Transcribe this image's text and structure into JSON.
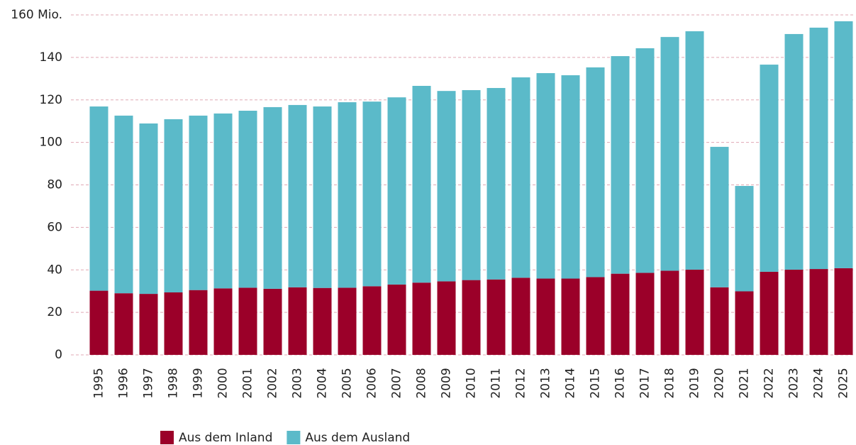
{
  "chart_data": {
    "type": "stacked_bar",
    "categories": [
      "1995",
      "1996",
      "1997",
      "1998",
      "1999",
      "2000",
      "2001",
      "2002",
      "2003",
      "2004",
      "2005",
      "2006",
      "2007",
      "2008",
      "2009",
      "2010",
      "2011",
      "2012",
      "2013",
      "2014",
      "2015",
      "2016",
      "2017",
      "2018",
      "2019",
      "2020",
      "2021",
      "2022",
      "2023",
      "2024",
      "2025"
    ],
    "series": [
      {
        "name": "Aus dem Inland",
        "color": "#9b0029",
        "values": [
          30.2,
          29,
          28.7,
          29.4,
          30.5,
          31.3,
          31.6,
          31.1,
          31.8,
          31.5,
          31.6,
          32.3,
          33.1,
          34,
          34.6,
          35.2,
          35.5,
          36.3,
          35.9,
          35.9,
          36.6,
          38.2,
          38.6,
          39.6,
          40.1,
          31.8,
          29.9,
          39.1,
          40.1,
          40.4,
          40.8
        ]
      },
      {
        "name": "Aus dem Ausland",
        "color": "#5bbac9",
        "values": [
          86.7,
          83.6,
          80.2,
          81.5,
          82.1,
          82.3,
          83.3,
          85.5,
          85.8,
          85.4,
          87.3,
          86.9,
          88.1,
          92.6,
          89.6,
          89.4,
          90.1,
          94.3,
          96.7,
          95.7,
          98.7,
          102.4,
          105.7,
          110,
          112.2,
          66.1,
          49.6,
          97.5,
          110.9,
          113.6,
          116.2
        ]
      }
    ],
    "ylim": [
      0,
      160
    ],
    "yticks": [
      0,
      20,
      40,
      60,
      80,
      100,
      120,
      140,
      {
        "value": 160,
        "label": "160 Mio."
      }
    ],
    "grid": true
  }
}
